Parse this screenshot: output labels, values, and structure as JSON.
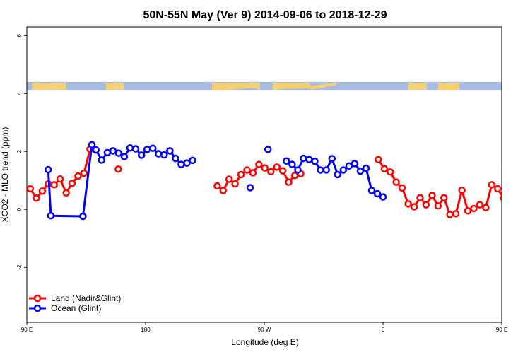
{
  "chart_data": {
    "type": "line",
    "title": "50N-55N May (Ver 9)   2014-09-06 to 2018-12-29",
    "xlabel": "Longitude (deg E)",
    "ylabel": "XCO2 - MLO trend (ppm)",
    "xlim": [
      90,
      450
    ],
    "ylim": [
      -3.9,
      6.3
    ],
    "x_ticks": [
      {
        "value": 90,
        "label": "90 E"
      },
      {
        "value": 180,
        "label": "180"
      },
      {
        "value": 270,
        "label": "90 W"
      },
      {
        "value": 360,
        "label": "0"
      },
      {
        "value": 450,
        "label": "90 E"
      },
      {
        "value": 540,
        "label": "180"
      }
    ],
    "y_ticks": [
      {
        "value": -2,
        "label": "-2"
      },
      {
        "value": 0,
        "label": "0"
      },
      {
        "value": 2,
        "label": "2"
      },
      {
        "value": 4,
        "label": "4"
      },
      {
        "value": 6,
        "label": "6"
      }
    ],
    "grid": false,
    "legend_position": "bottom-left",
    "map_strip": {
      "y_range": [
        4.1,
        4.4
      ],
      "ocean_color": "#a8bce0",
      "land_color": "#f5d070"
    },
    "series": [
      {
        "name": "Land (Nadir&Glint)",
        "color": "#ff0000",
        "segments": [
          [
            {
              "x": 92.6,
              "y": 0.71
            },
            {
              "x": 97.2,
              "y": 0.39
            },
            {
              "x": 101.7,
              "y": 0.63
            },
            {
              "x": 106.2,
              "y": 0.88
            },
            {
              "x": 110.7,
              "y": 0.85
            },
            {
              "x": 115.2,
              "y": 1.05
            },
            {
              "x": 119.8,
              "y": 0.57
            },
            {
              "x": 124.3,
              "y": 0.9
            },
            {
              "x": 128.8,
              "y": 1.15
            },
            {
              "x": 133.3,
              "y": 1.25
            },
            {
              "x": 137.9,
              "y": 2.08
            }
          ],
          [
            {
              "x": 159.3,
              "y": 1.39
            }
          ],
          [
            {
              "x": 234.3,
              "y": 0.81
            },
            {
              "x": 238.8,
              "y": 0.65
            },
            {
              "x": 243.3,
              "y": 1.04
            },
            {
              "x": 247.8,
              "y": 0.88
            },
            {
              "x": 252.4,
              "y": 1.2
            },
            {
              "x": 256.9,
              "y": 1.36
            },
            {
              "x": 261.4,
              "y": 1.26
            },
            {
              "x": 265.9,
              "y": 1.55
            },
            {
              "x": 270.4,
              "y": 1.43
            },
            {
              "x": 275.0,
              "y": 1.3
            },
            {
              "x": 279.5,
              "y": 1.46
            },
            {
              "x": 284.0,
              "y": 1.33
            },
            {
              "x": 288.5,
              "y": 0.94
            },
            {
              "x": 293.1,
              "y": 1.17
            },
            {
              "x": 297.6,
              "y": 1.23
            }
          ],
          [
            {
              "x": 356.4,
              "y": 1.72
            },
            {
              "x": 361.0,
              "y": 1.4
            },
            {
              "x": 365.5,
              "y": 1.29
            },
            {
              "x": 370.0,
              "y": 0.94
            },
            {
              "x": 374.5,
              "y": 0.74
            },
            {
              "x": 379.1,
              "y": 0.19
            },
            {
              "x": 383.6,
              "y": 0.09
            },
            {
              "x": 388.1,
              "y": 0.4
            },
            {
              "x": 392.6,
              "y": 0.16
            },
            {
              "x": 397.2,
              "y": 0.48
            },
            {
              "x": 401.7,
              "y": 0.12
            },
            {
              "x": 406.2,
              "y": 0.4
            },
            {
              "x": 410.7,
              "y": -0.18
            },
            {
              "x": 415.2,
              "y": -0.15
            },
            {
              "x": 419.8,
              "y": 0.66
            },
            {
              "x": 424.3,
              "y": -0.05
            },
            {
              "x": 428.8,
              "y": 0.03
            },
            {
              "x": 433.3,
              "y": 0.16
            },
            {
              "x": 437.9,
              "y": 0.06
            },
            {
              "x": 442.4,
              "y": 0.85
            },
            {
              "x": 446.9,
              "y": 0.71
            },
            {
              "x": 451.4,
              "y": 0.39
            },
            {
              "x": 456.0,
              "y": 0.63
            },
            {
              "x": 460.5,
              "y": 0.88
            },
            {
              "x": 465.0,
              "y": 0.85
            },
            {
              "x": 469.5,
              "y": 1.05
            },
            {
              "x": 474.0,
              "y": 0.57
            },
            {
              "x": 478.6,
              "y": 0.9
            },
            {
              "x": 483.1,
              "y": 1.15
            },
            {
              "x": 487.6,
              "y": 1.25
            },
            {
              "x": 492.1,
              "y": 2.08
            }
          ],
          [
            {
              "x": 506.0,
              "y": 1.39
            }
          ]
        ]
      },
      {
        "name": "Ocean (Glint)",
        "color": "#0000ff",
        "segments": [
          [
            {
              "x": 106.2,
              "y": 1.37
            },
            {
              "x": 108.2,
              "y": -0.22
            },
            {
              "x": 132.5,
              "y": -0.24
            },
            {
              "x": 139.3,
              "y": 2.23
            },
            {
              "x": 142.4,
              "y": 2.05
            },
            {
              "x": 146.7,
              "y": 1.7
            },
            {
              "x": 151.0,
              "y": 1.96
            },
            {
              "x": 155.3,
              "y": 2.02
            },
            {
              "x": 159.6,
              "y": 1.94
            },
            {
              "x": 163.9,
              "y": 1.82
            },
            {
              "x": 168.2,
              "y": 2.12
            },
            {
              "x": 172.5,
              "y": 2.09
            },
            {
              "x": 176.9,
              "y": 1.87
            },
            {
              "x": 181.2,
              "y": 2.07
            },
            {
              "x": 185.5,
              "y": 2.11
            },
            {
              "x": 189.8,
              "y": 1.92
            },
            {
              "x": 194.1,
              "y": 1.88
            },
            {
              "x": 198.4,
              "y": 2.02
            },
            {
              "x": 202.7,
              "y": 1.76
            },
            {
              "x": 207.0,
              "y": 1.55
            },
            {
              "x": 211.3,
              "y": 1.6
            },
            {
              "x": 215.6,
              "y": 1.69
            }
          ],
          [
            {
              "x": 259.3,
              "y": 0.75
            }
          ],
          [
            {
              "x": 272.8,
              "y": 2.07
            }
          ],
          [
            {
              "x": 286.8,
              "y": 1.67
            },
            {
              "x": 291.1,
              "y": 1.55
            },
            {
              "x": 295.4,
              "y": 1.36
            },
            {
              "x": 299.7,
              "y": 1.76
            },
            {
              "x": 304.0,
              "y": 1.72
            },
            {
              "x": 308.3,
              "y": 1.66
            },
            {
              "x": 312.6,
              "y": 1.36
            },
            {
              "x": 317.0,
              "y": 1.36
            },
            {
              "x": 321.3,
              "y": 1.75
            },
            {
              "x": 325.6,
              "y": 1.2
            },
            {
              "x": 329.9,
              "y": 1.36
            },
            {
              "x": 334.2,
              "y": 1.5
            },
            {
              "x": 338.5,
              "y": 1.58
            },
            {
              "x": 342.8,
              "y": 1.32
            },
            {
              "x": 347.1,
              "y": 1.42
            },
            {
              "x": 351.4,
              "y": 0.65
            },
            {
              "x": 355.7,
              "y": 0.54
            },
            {
              "x": 360.0,
              "y": 0.43
            }
          ],
          [
            {
              "x": 452.5,
              "y": 1.37
            },
            {
              "x": 454.5,
              "y": -0.22
            }
          ],
          [
            {
              "x": 486.2,
              "y": -0.24
            },
            {
              "x": 489.3,
              "y": 2.23
            },
            {
              "x": 492.6,
              "y": 2.05
            },
            {
              "x": 496.9,
              "y": 1.7
            },
            {
              "x": 501.2,
              "y": 1.96
            },
            {
              "x": 505.5,
              "y": 2.02
            },
            {
              "x": 509.8,
              "y": 1.94
            },
            {
              "x": 514.1,
              "y": 1.82
            },
            {
              "x": 518.4,
              "y": 2.12
            }
          ]
        ]
      }
    ]
  }
}
